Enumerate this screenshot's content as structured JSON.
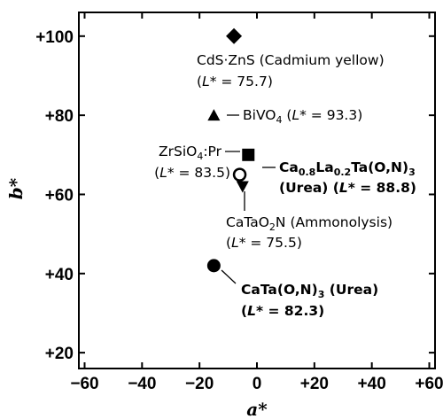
{
  "chart_data": {
    "type": "scatter",
    "title": "",
    "xlabel": "a*",
    "ylabel": "b*",
    "xlim": [
      -62,
      62
    ],
    "ylim": [
      16,
      106
    ],
    "x_ticks": [
      -60,
      -40,
      -20,
      0,
      20,
      40,
      60
    ],
    "x_tick_labels": [
      "−60",
      "−40",
      "−20",
      "0",
      "+20",
      "+40",
      "+60"
    ],
    "y_ticks": [
      20,
      40,
      60,
      80,
      100
    ],
    "y_tick_labels": [
      "+20",
      "+40",
      "+60",
      "+80",
      "+100"
    ],
    "grid": false,
    "points": [
      {
        "marker": "diamond",
        "fill": "#000000",
        "x": -8,
        "y": 100,
        "line1": "CdS·ZnS (Cadmium yellow)",
        "lstar": "75.7"
      },
      {
        "marker": "triangle-up",
        "fill": "#000000",
        "x": -15,
        "y": 80,
        "compound": "BiVO",
        "sub": "4",
        "lstar": "93.3"
      },
      {
        "marker": "square",
        "fill": "#000000",
        "x": -3,
        "y": 70,
        "compound": "ZrSiO",
        "sub": "4",
        "suffix": ":Pr",
        "lstar": "83.5"
      },
      {
        "marker": "circle-open",
        "fill": "#ffffff",
        "x": -6,
        "y": 65,
        "parts": [
          "Ca",
          "0.8",
          "La",
          "0.2",
          "Ta(O,N)",
          "3"
        ],
        "line2": "(Urea)",
        "lstar": "88.8"
      },
      {
        "marker": "triangle-down",
        "fill": "#000000",
        "x": -5,
        "y": 62,
        "compound": "CaTaO",
        "sub": "2",
        "suffix": "N (Ammonolysis)",
        "lstar": "75.5"
      },
      {
        "marker": "circle",
        "fill": "#000000",
        "x": -15,
        "y": 42,
        "compound": "CaTa(O,N)",
        "sub": "3",
        "suffix": " (Urea)",
        "lstar": "82.3"
      }
    ]
  }
}
